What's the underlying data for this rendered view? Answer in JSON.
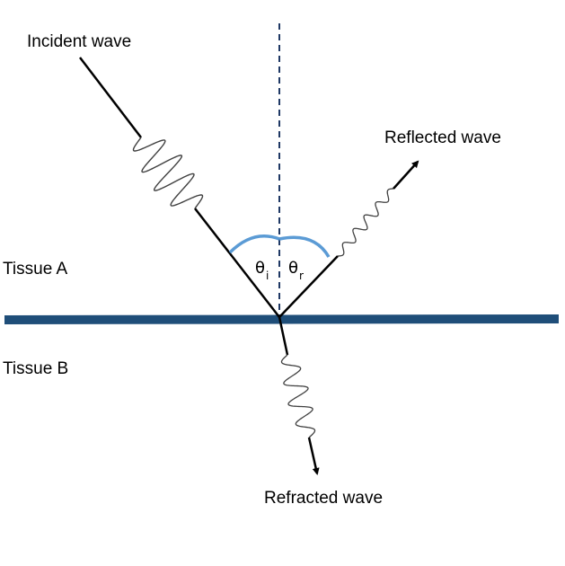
{
  "labels": {
    "incident": "Incident wave",
    "reflected": "Reflected wave",
    "refracted": "Refracted wave",
    "tissue_a": "Tissue A",
    "tissue_b": "Tissue B"
  },
  "angles": {
    "incident_symbol": "θ",
    "incident_subscript": "i",
    "reflected_symbol": "θ",
    "reflected_subscript": "r"
  },
  "colors": {
    "boundary": "#1f4e79",
    "angle_arc": "#5b9bd5",
    "ray": "#000000",
    "wave": "#404040"
  }
}
